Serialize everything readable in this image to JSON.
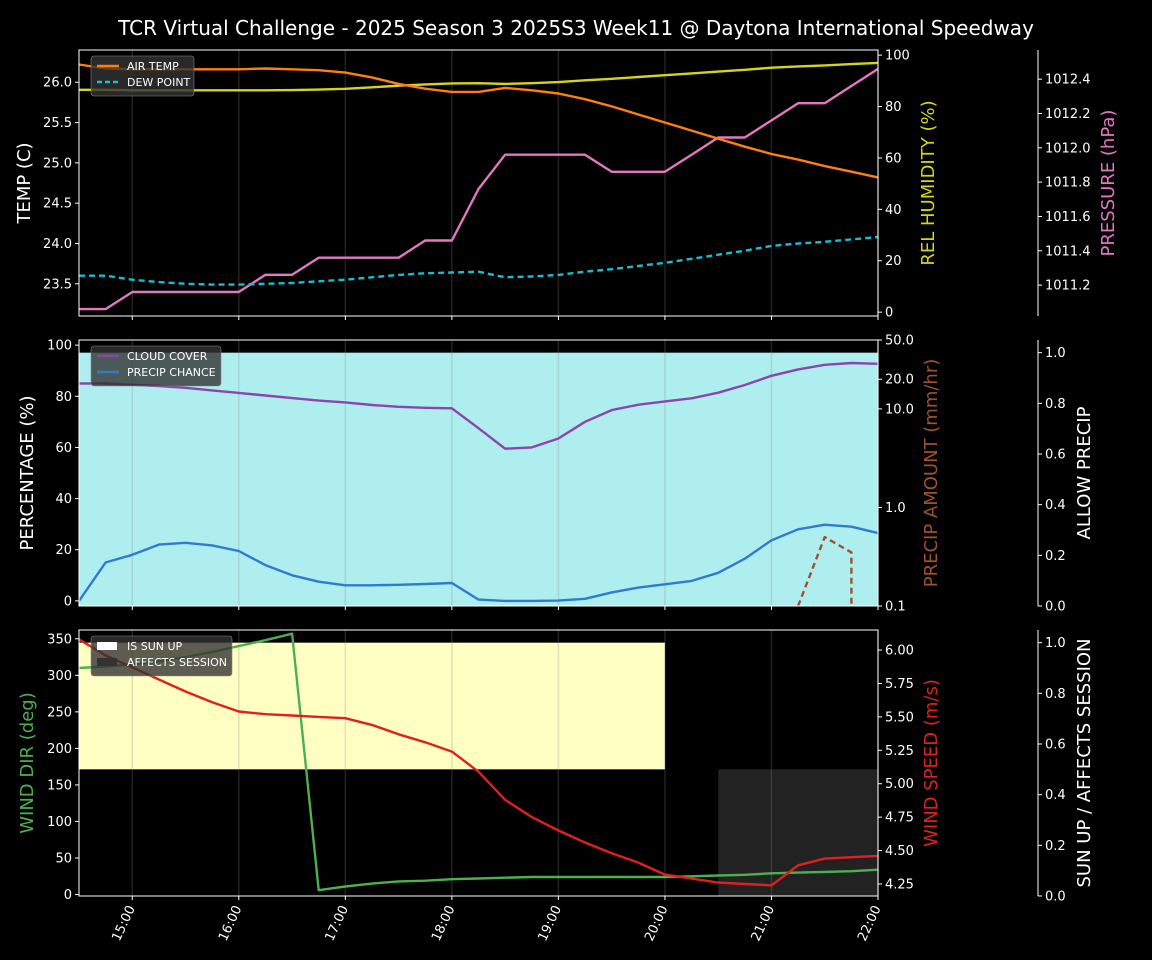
{
  "title": "TCR Virtual Challenge - 2025 Season 3 2025S3 Week11 @ Daytona International Speedway",
  "colors": {
    "background": "#000000",
    "axis": "#ffffff",
    "air_temp": "#ff7f0e",
    "dew_point": "#17becf",
    "humidity": "#d4d41e",
    "pressure": "#e377c2",
    "cloud_cover": "#8e44ad",
    "precip_chance": "#2e7bcf",
    "precip_amount": "#a0522d",
    "allow_precip_fill": "#afeeee",
    "sun_up_fill": "#ffffc4",
    "affects_session_fill": "#222222",
    "wind_dir": "#4caf50",
    "wind_speed": "#e02020"
  },
  "chart_data": [
    {
      "type": "line",
      "panel": "weather-temps",
      "ylabel": "TEMP (C)",
      "ylabel2": "REL HUMIDITY (%)",
      "ylabel3": "PRESSURE (hPa)",
      "ylim": [
        23.1,
        26.4
      ],
      "y2lim": [
        -1.5,
        102
      ],
      "y3lim": [
        1011.02,
        1012.57
      ],
      "yticks": [
        "23.5",
        "24.0",
        "24.5",
        "25.0",
        "25.5",
        "26.0"
      ],
      "y2ticks": [
        "0",
        "20",
        "40",
        "60",
        "80",
        "100"
      ],
      "y3ticks": [
        "1011.2",
        "1011.4",
        "1011.6",
        "1011.8",
        "1012.0",
        "1012.2",
        "1012.4"
      ],
      "legend": [
        "AIR TEMP",
        "DEW POINT"
      ],
      "legend_position": "upper-left",
      "x": [
        14.5,
        14.75,
        15.0,
        15.25,
        15.5,
        15.75,
        16.0,
        16.25,
        16.5,
        16.75,
        17.0,
        17.25,
        17.5,
        17.75,
        18.0,
        18.25,
        18.5,
        18.75,
        19.0,
        19.25,
        19.5,
        19.75,
        20.0,
        20.25,
        20.5,
        20.75,
        21.0,
        21.25,
        21.5,
        21.75,
        22.0
      ],
      "series": [
        {
          "name": "AIR TEMP",
          "axis": "left",
          "values": [
            26.22,
            26.17,
            26.16,
            26.16,
            26.16,
            26.16,
            26.16,
            26.17,
            26.16,
            26.15,
            26.12,
            26.06,
            25.98,
            25.92,
            25.88,
            25.88,
            25.93,
            25.9,
            25.86,
            25.79,
            25.7,
            25.6,
            25.5,
            25.4,
            25.3,
            25.2,
            25.11,
            25.04,
            24.96,
            24.89,
            24.82
          ]
        },
        {
          "name": "DEW POINT",
          "axis": "left",
          "values": [
            23.6,
            23.6,
            23.55,
            23.52,
            23.5,
            23.49,
            23.49,
            23.5,
            23.51,
            23.53,
            23.55,
            23.58,
            23.61,
            23.63,
            23.64,
            23.65,
            23.58,
            23.59,
            23.61,
            23.65,
            23.68,
            23.72,
            23.76,
            23.81,
            23.86,
            23.91,
            23.97,
            24.0,
            24.02,
            24.05,
            24.08
          ]
        },
        {
          "name": "REL HUMIDITY",
          "axis": "right",
          "values": [
            86.5,
            86.5,
            86.3,
            86.3,
            86.3,
            86.3,
            86.3,
            86.3,
            86.4,
            86.6,
            86.9,
            87.5,
            88.1,
            88.6,
            89.0,
            89.1,
            88.8,
            89.1,
            89.5,
            90.2,
            90.8,
            91.5,
            92.2,
            92.9,
            93.6,
            94.3,
            95.1,
            95.6,
            96.0,
            96.5,
            97.0
          ]
        },
        {
          "name": "PRESSURE",
          "axis": "right2",
          "values": [
            1011.06,
            1011.06,
            1011.16,
            1011.16,
            1011.16,
            1011.16,
            1011.16,
            1011.26,
            1011.26,
            1011.36,
            1011.36,
            1011.36,
            1011.36,
            1011.46,
            1011.46,
            1011.76,
            1011.96,
            1011.96,
            1011.96,
            1011.96,
            1011.86,
            1011.86,
            1011.86,
            1011.96,
            1012.06,
            1012.06,
            1012.16,
            1012.26,
            1012.26,
            1012.36,
            1012.46
          ]
        }
      ]
    },
    {
      "type": "line",
      "panel": "clouds-precip",
      "ylabel": "PERCENTAGE (%)",
      "ylabel2": "PRECIP AMOUNT (mm/hr)",
      "ylabel3": "ALLOW PRECIP",
      "ylim": [
        -2,
        102
      ],
      "y2scale": "log",
      "y2lim": [
        0.1,
        50
      ],
      "y3lim": [
        0,
        1.05
      ],
      "yticks": [
        "0",
        "20",
        "40",
        "60",
        "80",
        "100"
      ],
      "y2ticks": [
        "0.1",
        "1.0",
        "10.0",
        "20.0",
        "50.0"
      ],
      "y3ticks": [
        "0.0",
        "0.2",
        "0.4",
        "0.6",
        "0.8",
        "1.0"
      ],
      "legend": [
        "CLOUD COVER",
        "PRECIP CHANCE"
      ],
      "legend_position": "upper-left",
      "allow_precip": 1.0,
      "x": [
        14.5,
        14.75,
        15.0,
        15.25,
        15.5,
        15.75,
        16.0,
        16.25,
        16.5,
        16.75,
        17.0,
        17.25,
        17.5,
        17.75,
        18.0,
        18.25,
        18.5,
        18.75,
        19.0,
        19.25,
        19.5,
        19.75,
        20.0,
        20.25,
        20.5,
        20.75,
        21.0,
        21.25,
        21.5,
        21.75,
        22.0
      ],
      "series": [
        {
          "name": "CLOUD COVER",
          "axis": "left",
          "values": [
            85,
            85,
            84.5,
            84,
            83.3,
            82.3,
            81.3,
            80.3,
            79.3,
            78.3,
            77.6,
            76.6,
            75.9,
            75.5,
            75.3,
            67.5,
            59.5,
            60,
            63.5,
            70,
            74.6,
            76.7,
            78,
            79.2,
            81.4,
            84.4,
            88,
            90.5,
            92.3,
            93,
            92.7
          ]
        },
        {
          "name": "PRECIP CHANCE",
          "axis": "left",
          "values": [
            0,
            15,
            18,
            22,
            22.7,
            21.7,
            19.5,
            14,
            10,
            7.5,
            6.1,
            6.1,
            6.3,
            6.6,
            7,
            0.5,
            0,
            0,
            0.1,
            0.8,
            3.3,
            5.2,
            6.5,
            7.8,
            11,
            16.5,
            23.7,
            28,
            29.8,
            29,
            26.5
          ]
        },
        {
          "name": "PRECIP AMOUNT",
          "axis": "right",
          "x": [
            21.25,
            21.5,
            21.75,
            21.75
          ],
          "values": [
            0.1,
            0.5,
            0.35,
            0.1
          ]
        }
      ]
    },
    {
      "type": "line",
      "panel": "wind-sun",
      "ylabel": "WIND DIR (deg)",
      "ylabel2": "WIND SPEED (m/s)",
      "ylabel3": "SUN UP / AFFECTS SESSION",
      "ylim": [
        -2,
        362
      ],
      "y2lim": [
        4.16,
        6.15
      ],
      "y3lim": [
        0,
        1.05
      ],
      "yticks": [
        "0",
        "50",
        "100",
        "150",
        "200",
        "250",
        "300",
        "350"
      ],
      "y2ticks": [
        "4.25",
        "4.50",
        "4.75",
        "5.00",
        "5.25",
        "5.50",
        "5.75",
        "6.00"
      ],
      "y3ticks": [
        "0.0",
        "0.2",
        "0.4",
        "0.6",
        "0.8",
        "1.0"
      ],
      "legend": [
        "IS SUN UP",
        "AFFECTS SESSION"
      ],
      "legend_position": "upper-left",
      "sun_up": {
        "start": 14.5,
        "end": 20.0,
        "value": 1.0
      },
      "affects_session": {
        "start": 20.5,
        "end": 22.0,
        "value": 0.5
      },
      "x": [
        14.5,
        14.75,
        15.0,
        15.25,
        15.5,
        15.75,
        16.0,
        16.25,
        16.5,
        16.75,
        17.0,
        17.25,
        17.5,
        17.75,
        18.0,
        18.25,
        18.5,
        18.75,
        19.0,
        19.25,
        19.5,
        19.75,
        20.0,
        20.25,
        20.5,
        20.75,
        21.0,
        21.25,
        21.5,
        21.75,
        22.0
      ],
      "series": [
        {
          "name": "WIND DIR",
          "axis": "left",
          "values": [
            310,
            312,
            315,
            319,
            325,
            332,
            340,
            348,
            357,
            6,
            11,
            15,
            18,
            19,
            21,
            22,
            23,
            24,
            24,
            24,
            24,
            24,
            24,
            25,
            26,
            27,
            29,
            30,
            31,
            32,
            34
          ]
        },
        {
          "name": "WIND SPEED",
          "axis": "right",
          "values": [
            6.08,
            5.96,
            5.87,
            5.78,
            5.69,
            5.61,
            5.54,
            5.52,
            5.51,
            5.5,
            5.49,
            5.44,
            5.37,
            5.31,
            5.24,
            5.09,
            4.88,
            4.75,
            4.65,
            4.56,
            4.48,
            4.41,
            4.32,
            4.29,
            4.26,
            4.25,
            4.24,
            4.39,
            4.44,
            4.45,
            4.46
          ]
        }
      ]
    }
  ],
  "x_axis": {
    "ticks": [
      15,
      16,
      17,
      18,
      19,
      20,
      21,
      22
    ],
    "labels": [
      "15:00",
      "16:00",
      "17:00",
      "18:00",
      "19:00",
      "20:00",
      "21:00",
      "22:00"
    ],
    "xlim": [
      14.5,
      22.0
    ]
  }
}
